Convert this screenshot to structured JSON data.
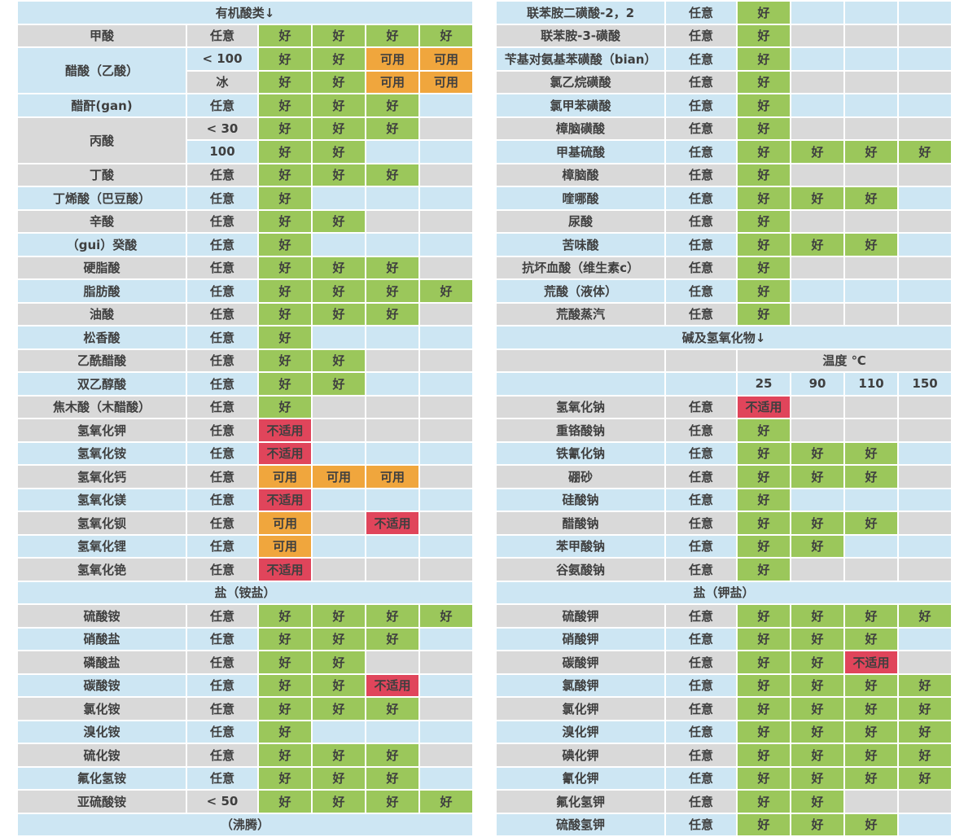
{
  "palette": {
    "row_blue": "#cde6f3",
    "row_gray": "#d9d9d9",
    "good_green": "#9bc75b",
    "usable_orange": "#f0a63d",
    "unsuitable_red": "#e0455b",
    "text": "#3f3f3f",
    "page_bg": "#ffffff"
  },
  "legend": {
    "G": "好",
    "U": "可用",
    "N": "不适用"
  },
  "tables": [
    {
      "id": "left-table",
      "rows": [
        {
          "t": "section",
          "label": "有机酸类↓",
          "bg": "blue"
        },
        {
          "t": "data",
          "name": "甲酸",
          "cond": "任意",
          "cells": [
            "G",
            "G",
            "G",
            "G"
          ],
          "bg": "gray"
        },
        {
          "t": "data",
          "name": "醋酸（乙酸）",
          "name_rowspan": 2,
          "name_bg": "blue",
          "cond": "< 100",
          "cells": [
            "G",
            "G",
            "U",
            "U"
          ],
          "bg": "blue"
        },
        {
          "t": "data",
          "cond": "冰",
          "cells": [
            "G",
            "G",
            "U",
            "U"
          ],
          "bg": "gray"
        },
        {
          "t": "data",
          "name": "醋酐(gan)",
          "cond": "任意",
          "cells": [
            "G",
            "G",
            "G",
            ""
          ],
          "bg": "blue"
        },
        {
          "t": "data",
          "name": "丙酸",
          "name_rowspan": 2,
          "name_bg": "gray",
          "cond": "< 30",
          "cells": [
            "G",
            "G",
            "G",
            ""
          ],
          "bg": "gray"
        },
        {
          "t": "data",
          "cond": "100",
          "cells": [
            "G",
            "G",
            "",
            ""
          ],
          "bg": "blue"
        },
        {
          "t": "data",
          "name": "丁酸",
          "cond": "任意",
          "cells": [
            "G",
            "G",
            "G",
            ""
          ],
          "bg": "gray"
        },
        {
          "t": "data",
          "name": "丁烯酸（巴豆酸）",
          "cond": "任意",
          "cells": [
            "G",
            "",
            "",
            ""
          ],
          "bg": "blue"
        },
        {
          "t": "data",
          "name": "辛酸",
          "cond": "任意",
          "cells": [
            "G",
            "G",
            "",
            ""
          ],
          "bg": "gray"
        },
        {
          "t": "data",
          "name": "（gui）癸酸",
          "cond": "任意",
          "cells": [
            "G",
            "",
            "",
            ""
          ],
          "bg": "blue"
        },
        {
          "t": "data",
          "name": "硬脂酸",
          "cond": "任意",
          "cells": [
            "G",
            "G",
            "G",
            ""
          ],
          "bg": "gray"
        },
        {
          "t": "data",
          "name": "脂肪酸",
          "cond": "任意",
          "cells": [
            "G",
            "G",
            "G",
            "G"
          ],
          "bg": "blue"
        },
        {
          "t": "data",
          "name": "油酸",
          "cond": "任意",
          "cells": [
            "G",
            "G",
            "G",
            ""
          ],
          "bg": "gray"
        },
        {
          "t": "data",
          "name": "松香酸",
          "cond": "任意",
          "cells": [
            "G",
            "",
            "",
            ""
          ],
          "bg": "blue"
        },
        {
          "t": "data",
          "name": "乙酰醋酸",
          "cond": "任意",
          "cells": [
            "G",
            "G",
            "",
            ""
          ],
          "bg": "gray"
        },
        {
          "t": "data",
          "name": "双乙醇酸",
          "cond": "任意",
          "cells": [
            "G",
            "G",
            "",
            ""
          ],
          "bg": "blue"
        },
        {
          "t": "data",
          "name": "焦木酸（木醋酸）",
          "cond": "任意",
          "cells": [
            "G",
            "",
            "",
            ""
          ],
          "bg": "gray"
        },
        {
          "t": "data",
          "name": "氢氧化钾",
          "cond": "任意",
          "cells": [
            "N",
            "",
            "",
            ""
          ],
          "bg": "gray"
        },
        {
          "t": "data",
          "name": "氢氧化铵",
          "cond": "任意",
          "cells": [
            "N",
            "",
            "",
            ""
          ],
          "bg": "blue"
        },
        {
          "t": "data",
          "name": "氢氧化钙",
          "cond": "任意",
          "cells": [
            "U",
            "U",
            "U",
            ""
          ],
          "bg": "gray"
        },
        {
          "t": "data",
          "name": "氢氧化镁",
          "cond": "任意",
          "cells": [
            "N",
            "",
            "",
            ""
          ],
          "bg": "blue"
        },
        {
          "t": "data",
          "name": "氢氧化钡",
          "cond": "任意",
          "cells": [
            "U",
            "",
            "N",
            ""
          ],
          "bg": "gray"
        },
        {
          "t": "data",
          "name": "氢氧化锂",
          "cond": "任意",
          "cells": [
            "U",
            "",
            "",
            ""
          ],
          "bg": "blue"
        },
        {
          "t": "data",
          "name": "氢氧化铯",
          "cond": "任意",
          "cells": [
            "N",
            "",
            "",
            ""
          ],
          "bg": "gray"
        },
        {
          "t": "section",
          "label": "盐（铵盐）",
          "bg": "blue"
        },
        {
          "t": "data",
          "name": "硫酸铵",
          "cond": "任意",
          "cells": [
            "G",
            "G",
            "G",
            "G"
          ],
          "bg": "gray"
        },
        {
          "t": "data",
          "name": "硝酸盐",
          "cond": "任意",
          "cells": [
            "G",
            "G",
            "G",
            ""
          ],
          "bg": "blue"
        },
        {
          "t": "data",
          "name": "磷酸盐",
          "cond": "任意",
          "cells": [
            "G",
            "G",
            "",
            ""
          ],
          "bg": "gray"
        },
        {
          "t": "data",
          "name": "碳酸铵",
          "cond": "任意",
          "cells": [
            "G",
            "G",
            "N",
            ""
          ],
          "bg": "blue"
        },
        {
          "t": "data",
          "name": "氯化铵",
          "cond": "任意",
          "cells": [
            "G",
            "G",
            "G",
            ""
          ],
          "bg": "gray"
        },
        {
          "t": "data",
          "name": "溴化铵",
          "cond": "任意",
          "cells": [
            "G",
            "",
            "",
            ""
          ],
          "bg": "blue"
        },
        {
          "t": "data",
          "name": "硫化铵",
          "cond": "任意",
          "cells": [
            "G",
            "G",
            "G",
            ""
          ],
          "bg": "gray"
        },
        {
          "t": "data",
          "name": "氟化氢铵",
          "cond": "任意",
          "cells": [
            "G",
            "G",
            "G",
            ""
          ],
          "bg": "blue"
        },
        {
          "t": "data",
          "name": "亚硫酸铵",
          "cond": "< 50",
          "cells": [
            "G",
            "G",
            "G",
            "G"
          ],
          "bg": "gray"
        },
        {
          "t": "note",
          "label": "（沸腾）",
          "bg": "blue"
        }
      ]
    },
    {
      "id": "right-table",
      "rows": [
        {
          "t": "data",
          "name": "联苯胺二磺酸-2，2",
          "cond": "任意",
          "cells": [
            "G",
            "",
            "",
            ""
          ],
          "bg": "blue"
        },
        {
          "t": "data",
          "name": "联苯胺-3-磺酸",
          "cond": "任意",
          "cells": [
            "G",
            "",
            "",
            ""
          ],
          "bg": "gray"
        },
        {
          "t": "data",
          "name": "苄基对氨基苯磺酸（bian）",
          "cond": "任意",
          "cells": [
            "G",
            "",
            "",
            ""
          ],
          "bg": "blue"
        },
        {
          "t": "data",
          "name": "氯乙烷磺酸",
          "cond": "任意",
          "cells": [
            "G",
            "",
            "",
            ""
          ],
          "bg": "gray"
        },
        {
          "t": "data",
          "name": "氯甲苯磺酸",
          "cond": "任意",
          "cells": [
            "G",
            "",
            "",
            ""
          ],
          "bg": "blue"
        },
        {
          "t": "data",
          "name": "樟脑磺酸",
          "cond": "任意",
          "cells": [
            "G",
            "",
            "",
            ""
          ],
          "bg": "gray"
        },
        {
          "t": "data",
          "name": "甲基硫酸",
          "cond": "任意",
          "cells": [
            "G",
            "G",
            "G",
            "G"
          ],
          "bg": "blue"
        },
        {
          "t": "data",
          "name": "樟脑酸",
          "cond": "任意",
          "cells": [
            "G",
            "",
            "",
            ""
          ],
          "bg": "gray"
        },
        {
          "t": "data",
          "name": "喹哪酸",
          "cond": "任意",
          "cells": [
            "G",
            "G",
            "G",
            ""
          ],
          "bg": "blue"
        },
        {
          "t": "data",
          "name": "尿酸",
          "cond": "任意",
          "cells": [
            "G",
            "",
            "",
            ""
          ],
          "bg": "gray"
        },
        {
          "t": "data",
          "name": "苦味酸",
          "cond": "任意",
          "cells": [
            "G",
            "G",
            "G",
            ""
          ],
          "bg": "blue"
        },
        {
          "t": "data",
          "name": "抗坏血酸（维生素c）",
          "cond": "任意",
          "cells": [
            "G",
            "",
            "",
            ""
          ],
          "bg": "gray"
        },
        {
          "t": "data",
          "name": "荒酸（液体）",
          "cond": "任意",
          "cells": [
            "G",
            "",
            "",
            ""
          ],
          "bg": "blue"
        },
        {
          "t": "data",
          "name": "荒酸蒸汽",
          "cond": "任意",
          "cells": [
            "G",
            "",
            "",
            ""
          ],
          "bg": "gray"
        },
        {
          "t": "section",
          "label": "碱及氢氧化物↓",
          "bg": "blue"
        },
        {
          "t": "temp_header",
          "label": "温度 ℃",
          "bg": "gray"
        },
        {
          "t": "temp_values",
          "values": [
            "25",
            "90",
            "110",
            "150"
          ],
          "bg": "blue"
        },
        {
          "t": "data",
          "name": "氢氧化钠",
          "cond": "任意",
          "cells": [
            "N",
            "",
            "",
            ""
          ],
          "bg": "gray"
        },
        {
          "t": "data",
          "name": "重铬酸钠",
          "cond": "任意",
          "cells": [
            "G",
            "",
            "",
            ""
          ],
          "bg": "gray"
        },
        {
          "t": "data",
          "name": "铁氰化钠",
          "cond": "任意",
          "cells": [
            "G",
            "G",
            "G",
            ""
          ],
          "bg": "blue"
        },
        {
          "t": "data",
          "name": "硼砂",
          "cond": "任意",
          "cells": [
            "G",
            "G",
            "G",
            ""
          ],
          "bg": "gray"
        },
        {
          "t": "data",
          "name": "硅酸钠",
          "cond": "任意",
          "cells": [
            "G",
            "",
            "",
            ""
          ],
          "bg": "blue"
        },
        {
          "t": "data",
          "name": "醋酸钠",
          "cond": "任意",
          "cells": [
            "G",
            "G",
            "G",
            ""
          ],
          "bg": "gray"
        },
        {
          "t": "data",
          "name": "苯甲酸钠",
          "cond": "任意",
          "cells": [
            "G",
            "G",
            "",
            ""
          ],
          "bg": "blue"
        },
        {
          "t": "data",
          "name": "谷氨酸钠",
          "cond": "任意",
          "cells": [
            "G",
            "",
            "",
            ""
          ],
          "bg": "gray"
        },
        {
          "t": "section",
          "label": "盐（钾盐）",
          "bg": "blue"
        },
        {
          "t": "data",
          "name": "硫酸钾",
          "cond": "任意",
          "cells": [
            "G",
            "G",
            "G",
            "G"
          ],
          "bg": "gray"
        },
        {
          "t": "data",
          "name": "硝酸钾",
          "cond": "任意",
          "cells": [
            "G",
            "G",
            "G",
            ""
          ],
          "bg": "blue"
        },
        {
          "t": "data",
          "name": "碳酸钾",
          "cond": "任意",
          "cells": [
            "G",
            "G",
            "N",
            ""
          ],
          "bg": "gray"
        },
        {
          "t": "data",
          "name": "氯酸钾",
          "cond": "任意",
          "cells": [
            "G",
            "G",
            "G",
            "G"
          ],
          "bg": "blue"
        },
        {
          "t": "data",
          "name": "氯化钾",
          "cond": "任意",
          "cells": [
            "G",
            "G",
            "G",
            "G"
          ],
          "bg": "gray"
        },
        {
          "t": "data",
          "name": "溴化钾",
          "cond": "任意",
          "cells": [
            "G",
            "G",
            "G",
            "G"
          ],
          "bg": "blue"
        },
        {
          "t": "data",
          "name": "碘化钾",
          "cond": "任意",
          "cells": [
            "G",
            "G",
            "G",
            "G"
          ],
          "bg": "gray"
        },
        {
          "t": "data",
          "name": "氰化钾",
          "cond": "任意",
          "cells": [
            "G",
            "G",
            "G",
            "G"
          ],
          "bg": "blue"
        },
        {
          "t": "data",
          "name": "氟化氢钾",
          "cond": "任意",
          "cells": [
            "G",
            "G",
            "",
            ""
          ],
          "bg": "gray"
        },
        {
          "t": "data",
          "name": "硫酸氢钾",
          "cond": "任意",
          "cells": [
            "G",
            "G",
            "G",
            ""
          ],
          "bg": "blue"
        }
      ]
    }
  ]
}
